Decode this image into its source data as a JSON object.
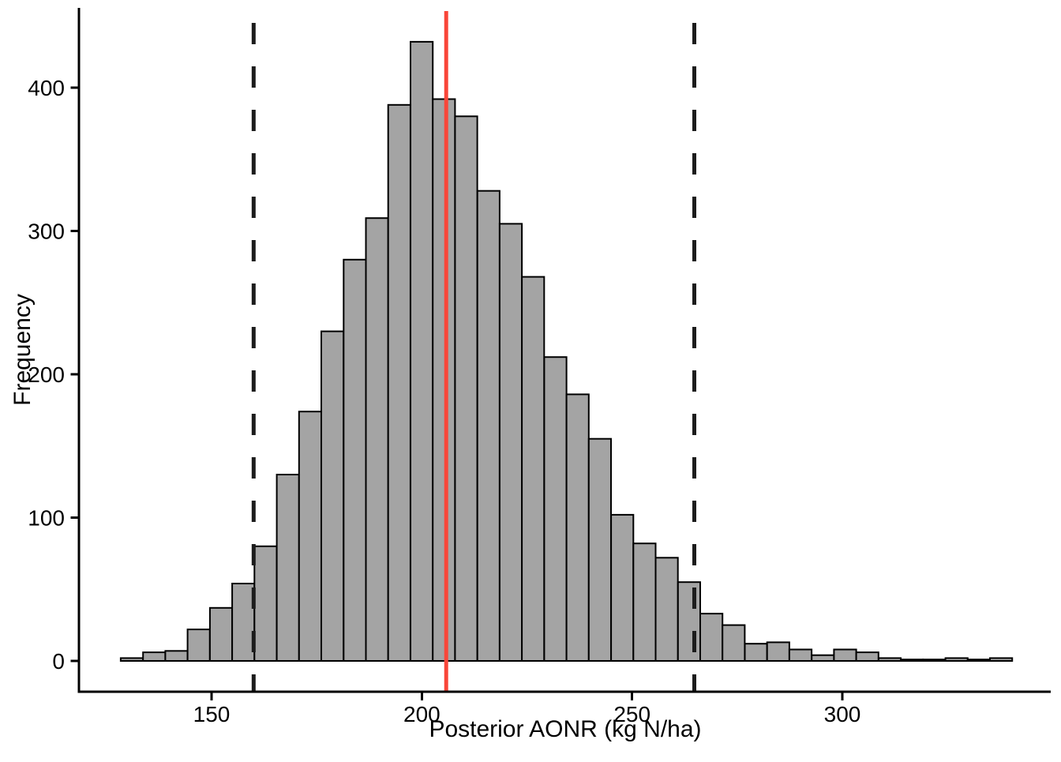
{
  "chart_data": {
    "type": "bar",
    "subtype": "histogram",
    "title": "",
    "xlabel": "Posterior AONR (kg N/ha)",
    "ylabel": "Frequency",
    "x_ticks": [
      150,
      200,
      250,
      300
    ],
    "y_ticks": [
      0,
      100,
      200,
      300,
      400
    ],
    "xlim": [
      118.5,
      349.5
    ],
    "ylim": [
      -21.5,
      455
    ],
    "grid": false,
    "legend": false,
    "bins": {
      "start": 128.4,
      "width": 5.3,
      "frequencies": [
        2,
        6,
        7,
        22,
        37,
        54,
        80,
        130,
        174,
        230,
        280,
        309,
        388,
        432,
        392,
        380,
        328,
        305,
        268,
        212,
        186,
        155,
        102,
        82,
        72,
        55,
        33,
        25,
        12,
        13,
        8,
        4,
        8,
        6,
        2,
        1,
        1,
        2,
        1,
        2
      ]
    },
    "vlines": [
      {
        "value": 160.0,
        "style": "dashed",
        "color": "#1c1c1c"
      },
      {
        "value": 205.8,
        "style": "solid",
        "color": "#f94639"
      },
      {
        "value": 264.8,
        "style": "dashed",
        "color": "#1c1c1c"
      }
    ],
    "colors": {
      "bar_fill": "#a4a4a4",
      "bar_stroke": "#000000",
      "axis": "#000000",
      "background": "#ffffff"
    }
  }
}
